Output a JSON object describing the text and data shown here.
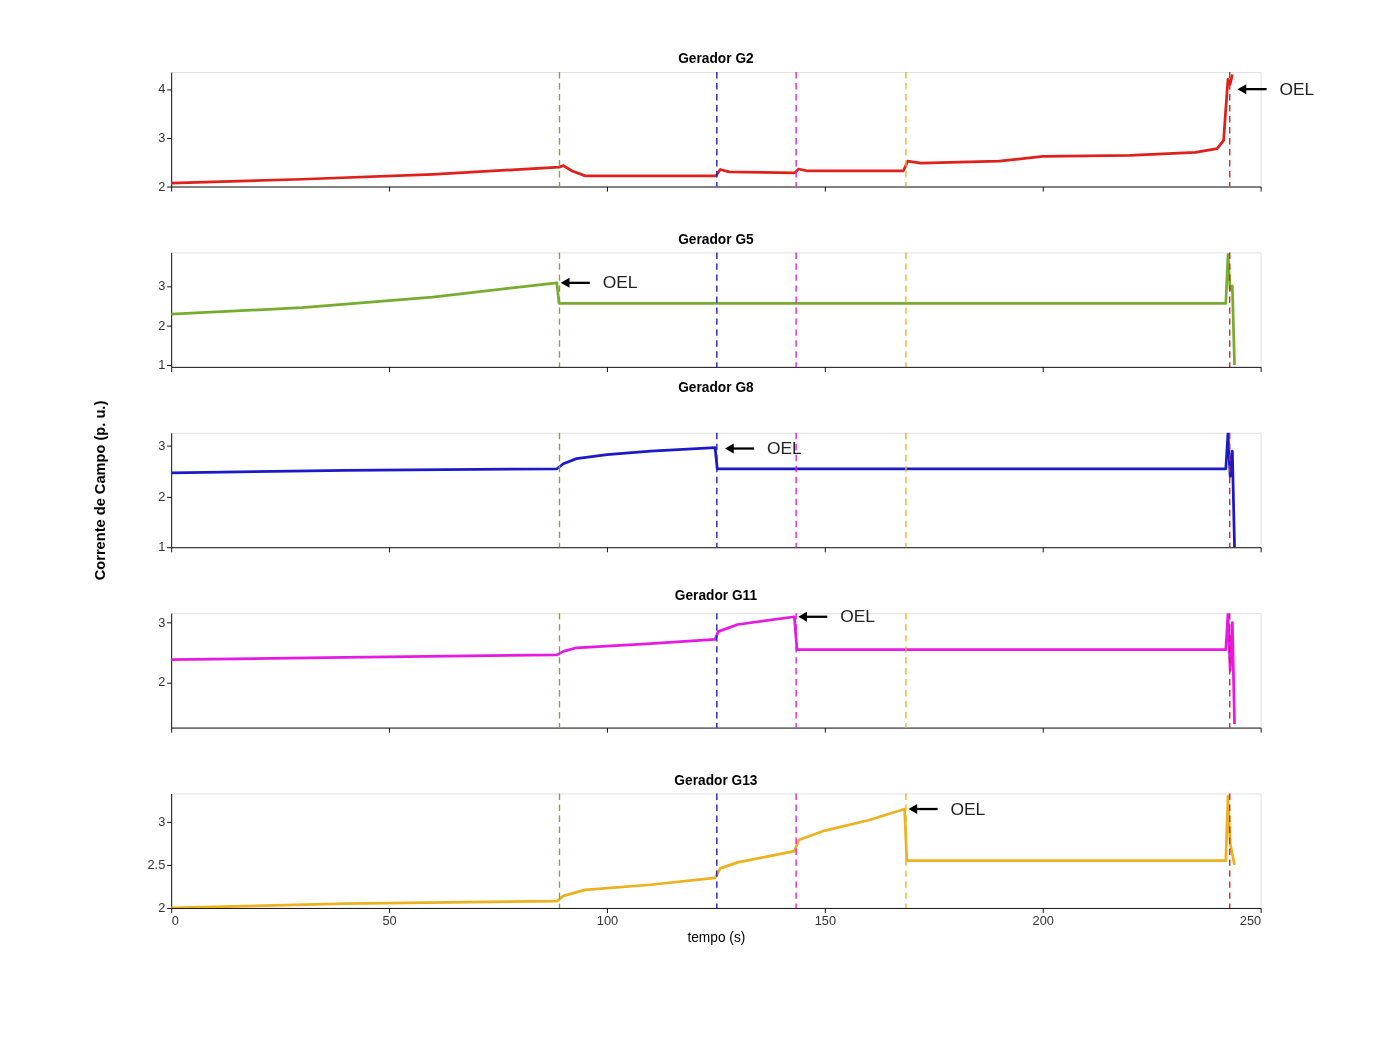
{
  "chart_data": [
    {
      "type": "line",
      "title": "Gerador G2",
      "xlim": [
        0,
        250
      ],
      "xticks": [
        0,
        50,
        100,
        150,
        200,
        250
      ],
      "ylim": [
        2,
        4.35
      ],
      "yticks": [
        2,
        3,
        4
      ],
      "tick_labels": "y",
      "grid": false,
      "marker": "none",
      "series": [
        {
          "color": "#e0201b",
          "x": [
            0,
            30,
            60,
            89,
            90,
            92,
            95,
            125,
            126,
            128,
            143,
            144,
            146,
            168,
            169,
            172,
            190,
            200,
            220,
            235,
            240,
            241.5,
            242,
            242.5,
            243,
            243.5
          ],
          "values": [
            2.07,
            2.15,
            2.25,
            2.4,
            2.43,
            2.32,
            2.22,
            2.22,
            2.35,
            2.3,
            2.28,
            2.36,
            2.32,
            2.32,
            2.52,
            2.48,
            2.52,
            2.62,
            2.64,
            2.7,
            2.78,
            2.95,
            3.6,
            4.2,
            4.1,
            4.3
          ]
        }
      ],
      "ref_lines": [
        {
          "axis": "x",
          "value": 89.1,
          "color": "#77ac30",
          "line_style": "dashed"
        },
        {
          "axis": "x",
          "value": 125.2,
          "color": "#1a1ac8",
          "line_style": "dashed"
        },
        {
          "axis": "x",
          "value": 143.4,
          "color": "#e619e6",
          "line_style": "dashed"
        },
        {
          "axis": "x",
          "value": 168.6,
          "color": "#edb120",
          "line_style": "dashed"
        },
        {
          "axis": "x",
          "value": 242.9,
          "color": "#e0201b",
          "line_style": "dashed"
        }
      ],
      "annotations": [
        {
          "text": "OEL",
          "x": 243.8,
          "y": 4.0
        }
      ]
    },
    {
      "type": "line",
      "title": "Gerador G5",
      "xlim": [
        0,
        250
      ],
      "xticks": [
        0,
        50,
        100,
        150,
        200,
        250
      ],
      "ylim": [
        0.95,
        3.85
      ],
      "yticks": [
        1,
        2,
        3
      ],
      "tick_labels": "y",
      "grid": false,
      "marker": "none",
      "series": [
        {
          "color": "#77ac30",
          "x": [
            0,
            30,
            60,
            88.5,
            89,
            242,
            242.5,
            243,
            243.5,
            244
          ],
          "values": [
            2.29,
            2.45,
            2.72,
            3.08,
            2.56,
            2.56,
            3.8,
            2.9,
            3.0,
            1.0
          ]
        }
      ],
      "ref_lines": [
        {
          "axis": "x",
          "value": 89.1,
          "color": "#77ac30",
          "line_style": "dashed"
        },
        {
          "axis": "x",
          "value": 125.2,
          "color": "#1a1ac8",
          "line_style": "dashed"
        },
        {
          "axis": "x",
          "value": 143.4,
          "color": "#e619e6",
          "line_style": "dashed"
        },
        {
          "axis": "x",
          "value": 168.6,
          "color": "#edb120",
          "line_style": "dashed"
        },
        {
          "axis": "x",
          "value": 242.9,
          "color": "#e0201b",
          "line_style": "dashed"
        }
      ],
      "annotations": [
        {
          "text": "OEL",
          "x": 88.5,
          "y": 3.08
        }
      ]
    },
    {
      "type": "line",
      "title": "Gerador G8",
      "ylabel": "Corrente de Campo (p. u.)",
      "xlim": [
        0,
        250
      ],
      "xticks": [
        0,
        50,
        100,
        150,
        200,
        250
      ],
      "ylim": [
        1,
        3.26
      ],
      "yticks": [
        1,
        2,
        3
      ],
      "tick_labels": "y",
      "grid": false,
      "marker": "none",
      "series": [
        {
          "color": "#1a1ac8",
          "x": [
            0,
            40,
            88.5,
            90,
            93,
            100,
            110,
            124.8,
            125.3,
            242,
            242.5,
            243,
            243.5,
            244
          ],
          "values": [
            2.47,
            2.52,
            2.55,
            2.65,
            2.75,
            2.83,
            2.9,
            2.97,
            2.55,
            2.55,
            3.25,
            2.4,
            2.9,
            1.0
          ]
        }
      ],
      "ref_lines": [
        {
          "axis": "x",
          "value": 89.1,
          "color": "#77ac30",
          "line_style": "dashed"
        },
        {
          "axis": "x",
          "value": 125.2,
          "color": "#1a1ac8",
          "line_style": "dashed"
        },
        {
          "axis": "x",
          "value": 143.4,
          "color": "#e619e6",
          "line_style": "dashed"
        },
        {
          "axis": "x",
          "value": 168.6,
          "color": "#edb120",
          "line_style": "dashed"
        },
        {
          "axis": "x",
          "value": 242.9,
          "color": "#e0201b",
          "line_style": "dashed"
        }
      ],
      "annotations": [
        {
          "text": "OEL",
          "x": 126.2,
          "y": 2.95
        }
      ]
    },
    {
      "type": "line",
      "title": "Gerador G11",
      "xlim": [
        0,
        250
      ],
      "xticks": [
        0,
        50,
        100,
        150,
        200,
        250
      ],
      "ylim": [
        1.24,
        3.16
      ],
      "yticks": [
        2,
        3
      ],
      "tick_labels": "y",
      "grid": false,
      "marker": "none",
      "series": [
        {
          "color": "#e619e6",
          "x": [
            0,
            40,
            88.5,
            90,
            93,
            110,
            124.8,
            125.5,
            130,
            143,
            143.6,
            242,
            242.5,
            243,
            243.5,
            244
          ],
          "values": [
            2.38,
            2.42,
            2.46,
            2.52,
            2.58,
            2.65,
            2.72,
            2.85,
            2.97,
            3.1,
            2.55,
            2.55,
            3.15,
            2.2,
            3.0,
            1.3
          ]
        }
      ],
      "ref_lines": [
        {
          "axis": "x",
          "value": 89.1,
          "color": "#77ac30",
          "line_style": "dashed"
        },
        {
          "axis": "x",
          "value": 125.2,
          "color": "#1a1ac8",
          "line_style": "dashed"
        },
        {
          "axis": "x",
          "value": 143.4,
          "color": "#e619e6",
          "line_style": "dashed"
        },
        {
          "axis": "x",
          "value": 168.6,
          "color": "#edb120",
          "line_style": "dashed"
        },
        {
          "axis": "x",
          "value": 242.9,
          "color": "#e0201b",
          "line_style": "dashed"
        }
      ],
      "annotations": [
        {
          "text": "OEL",
          "x": 143,
          "y": 3.1
        }
      ]
    },
    {
      "type": "line",
      "title": "Gerador G13",
      "xlabel": "tempo (s)",
      "xlim": [
        0,
        250
      ],
      "xticks": [
        0,
        50,
        100,
        150,
        200,
        250
      ],
      "ylim": [
        2,
        3.33
      ],
      "yticks": [
        2,
        2.5,
        3
      ],
      "grid": false,
      "marker": "none",
      "series": [
        {
          "color": "#edb120",
          "x": [
            0,
            40,
            88.5,
            90,
            95,
            110,
            124.8,
            126,
            130,
            143,
            144,
            150,
            160,
            168.3,
            168.8,
            242,
            242.5,
            243,
            244
          ],
          "values": [
            2.0,
            2.05,
            2.08,
            2.14,
            2.21,
            2.27,
            2.35,
            2.46,
            2.53,
            2.66,
            2.79,
            2.9,
            3.02,
            3.15,
            2.55,
            2.55,
            3.3,
            2.75,
            2.5
          ]
        }
      ],
      "ref_lines": [
        {
          "axis": "x",
          "value": 89.1,
          "color": "#77ac30",
          "line_style": "dashed"
        },
        {
          "axis": "x",
          "value": 125.2,
          "color": "#1a1ac8",
          "line_style": "dashed"
        },
        {
          "axis": "x",
          "value": 143.4,
          "color": "#e619e6",
          "line_style": "dashed"
        },
        {
          "axis": "x",
          "value": 168.6,
          "color": "#edb120",
          "line_style": "dashed"
        },
        {
          "axis": "x",
          "value": 242.9,
          "color": "#e0201b",
          "line_style": "dashed"
        }
      ],
      "annotations": [
        {
          "text": "OEL",
          "x": 168.3,
          "y": 3.15
        }
      ]
    }
  ]
}
